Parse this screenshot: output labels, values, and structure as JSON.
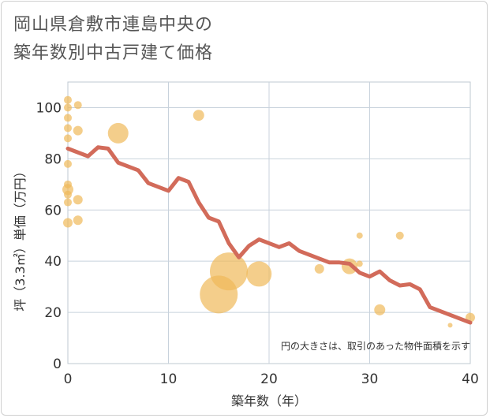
{
  "title_lines": [
    "岡山県倉敷市連島中央の",
    "築年数別中古戸建て価格"
  ],
  "chart_data": {
    "type": "scatter+line",
    "xlabel": "築年数（年）",
    "ylabel": "坪（3.3㎡）単価（万円）",
    "xlim": [
      0,
      40
    ],
    "ylim": [
      0,
      110
    ],
    "x_ticks": [
      "0",
      "10",
      "20",
      "30",
      "40"
    ],
    "y_ticks": [
      "0",
      "20",
      "40",
      "60",
      "80",
      "100"
    ],
    "x_tick_values": [
      0,
      10,
      20,
      30,
      40
    ],
    "y_tick_values": [
      0,
      20,
      40,
      60,
      80,
      100
    ],
    "grid": true,
    "note": "円の大きさは、取引のあった物件面積を示す",
    "colors": {
      "bubble": "#f0b95a",
      "line": "#d26b5a",
      "grid": "#c8d2dc",
      "plot_border": "#bfc8d2"
    },
    "bubbles": [
      {
        "x": 0,
        "y": 103,
        "size": 5
      },
      {
        "x": 0,
        "y": 100,
        "size": 5
      },
      {
        "x": 1,
        "y": 101,
        "size": 5
      },
      {
        "x": 0,
        "y": 96,
        "size": 5
      },
      {
        "x": 0,
        "y": 92,
        "size": 5
      },
      {
        "x": 1,
        "y": 91,
        "size": 6
      },
      {
        "x": 0,
        "y": 88,
        "size": 5
      },
      {
        "x": 0,
        "y": 78,
        "size": 5
      },
      {
        "x": 0,
        "y": 70,
        "size": 5
      },
      {
        "x": 0,
        "y": 68,
        "size": 7
      },
      {
        "x": 0,
        "y": 66,
        "size": 5
      },
      {
        "x": 1,
        "y": 64,
        "size": 6
      },
      {
        "x": 0,
        "y": 63,
        "size": 5
      },
      {
        "x": 1,
        "y": 56,
        "size": 6
      },
      {
        "x": 0,
        "y": 55,
        "size": 6
      },
      {
        "x": 5,
        "y": 90,
        "size": 13
      },
      {
        "x": 13,
        "y": 97,
        "size": 7
      },
      {
        "x": 15,
        "y": 27,
        "size": 24
      },
      {
        "x": 16,
        "y": 36,
        "size": 24
      },
      {
        "x": 19,
        "y": 35,
        "size": 16
      },
      {
        "x": 25,
        "y": 37,
        "size": 6
      },
      {
        "x": 28,
        "y": 38,
        "size": 10
      },
      {
        "x": 29,
        "y": 39,
        "size": 4
      },
      {
        "x": 29,
        "y": 50,
        "size": 4
      },
      {
        "x": 31,
        "y": 21,
        "size": 7
      },
      {
        "x": 33,
        "y": 50,
        "size": 5
      },
      {
        "x": 38,
        "y": 15,
        "size": 3
      },
      {
        "x": 40,
        "y": 18,
        "size": 6
      }
    ],
    "line": {
      "x": [
        0,
        1,
        2,
        3,
        4,
        5,
        6,
        7,
        8,
        9,
        10,
        11,
        12,
        13,
        14,
        15,
        16,
        17,
        18,
        19,
        20,
        21,
        22,
        23,
        24,
        25,
        26,
        27,
        28,
        29,
        30,
        31,
        32,
        33,
        34,
        35,
        36,
        37,
        38,
        39,
        40
      ],
      "y": [
        84,
        82.5,
        81,
        84.5,
        84,
        78.5,
        77,
        75.5,
        70.5,
        69,
        67.5,
        72.5,
        71,
        63,
        57,
        55.5,
        47,
        41.5,
        46,
        48.5,
        47,
        45.5,
        47,
        44,
        42.5,
        41,
        39.5,
        39.5,
        39,
        35.5,
        34,
        36,
        32.5,
        30.5,
        31,
        29,
        22,
        20.5,
        19,
        17.5,
        16
      ]
    }
  }
}
